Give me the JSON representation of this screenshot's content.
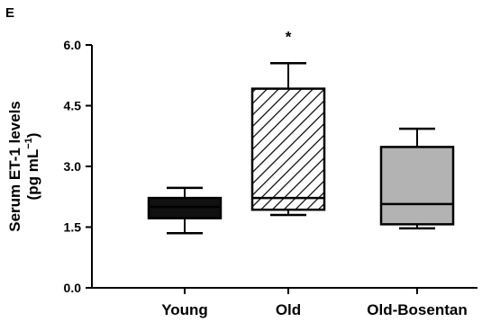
{
  "panel_label": "E",
  "chart_data": {
    "type": "box",
    "ylabel_line1": "Serum ET-1 levels",
    "ylabel_line2_prefix": "(pg mL",
    "ylabel_line2_sup": "−1",
    "ylabel_line2_suffix": ")",
    "ylim": [
      0,
      6
    ],
    "yticks": [
      0,
      1.5,
      3,
      4.5,
      6
    ],
    "ytick_labels": [
      "0.0",
      "1.5",
      "3.0",
      "4.5",
      "6.0"
    ],
    "categories": [
      "Young",
      "Old",
      "Old-Bosentan"
    ],
    "boxes": [
      {
        "category": "Young",
        "min": 1.35,
        "q1": 1.72,
        "median": 2.0,
        "q3": 2.22,
        "max": 2.47,
        "fill": "#111111",
        "pattern": "solid",
        "annotation": ""
      },
      {
        "category": "Old",
        "min": 1.8,
        "q1": 1.93,
        "median": 2.22,
        "q3": 4.92,
        "max": 5.55,
        "fill": "#ffffff",
        "pattern": "hatch",
        "annotation": "*"
      },
      {
        "category": "Old-Bosentan",
        "min": 1.47,
        "q1": 1.57,
        "median": 2.07,
        "q3": 3.48,
        "max": 3.93,
        "fill": "#b3b3b3",
        "pattern": "solid",
        "annotation": ""
      }
    ],
    "grid": false,
    "legend": "none"
  }
}
